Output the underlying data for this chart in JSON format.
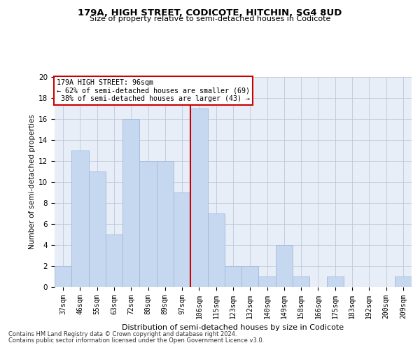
{
  "title": "179A, HIGH STREET, CODICOTE, HITCHIN, SG4 8UD",
  "subtitle": "Size of property relative to semi-detached houses in Codicote",
  "xlabel_bottom": "Distribution of semi-detached houses by size in Codicote",
  "ylabel": "Number of semi-detached properties",
  "categories": [
    "37sqm",
    "46sqm",
    "55sqm",
    "63sqm",
    "72sqm",
    "80sqm",
    "89sqm",
    "97sqm",
    "106sqm",
    "115sqm",
    "123sqm",
    "132sqm",
    "140sqm",
    "149sqm",
    "158sqm",
    "166sqm",
    "175sqm",
    "183sqm",
    "192sqm",
    "200sqm",
    "209sqm"
  ],
  "values": [
    2,
    13,
    11,
    5,
    16,
    12,
    12,
    9,
    17,
    7,
    2,
    2,
    1,
    4,
    1,
    0,
    1,
    0,
    0,
    0,
    1
  ],
  "bar_color": "#c5d8f0",
  "bar_edgecolor": "#a0b8d8",
  "property_marker_index": 7,
  "marker_line_color": "#cc0000",
  "annotation_box_edgecolor": "#cc0000",
  "smaller_pct": 62,
  "smaller_count": 69,
  "larger_pct": 38,
  "larger_count": 43,
  "ylim": [
    0,
    20
  ],
  "yticks": [
    0,
    2,
    4,
    6,
    8,
    10,
    12,
    14,
    16,
    18,
    20
  ],
  "grid_color": "#c0c8d8",
  "bg_color": "#e8eef8",
  "footnote1": "Contains HM Land Registry data © Crown copyright and database right 2024.",
  "footnote2": "Contains public sector information licensed under the Open Government Licence v3.0."
}
